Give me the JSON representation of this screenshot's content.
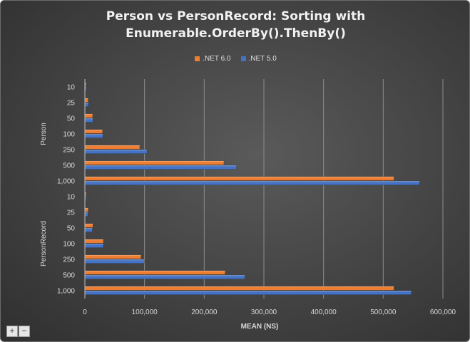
{
  "title_line1": "Person vs PersonRecord: Sorting with",
  "title_line2": "Enumerable.OrderBy().ThenBy()",
  "zoom": {
    "plus": "+",
    "minus": "−"
  },
  "colors": {
    "net6": "#ed7d31",
    "net5": "#4472c4"
  },
  "chart_data": {
    "type": "bar",
    "orientation": "horizontal",
    "title": "Person vs PersonRecord: Sorting with Enumerable.OrderBy().ThenBy()",
    "xlabel": "MEAN (NS)",
    "ylabel": "",
    "xlim": [
      0,
      600000
    ],
    "xticks": [
      "0",
      "100,000",
      "200,000",
      "300,000",
      "400,000",
      "500,000",
      "600,000"
    ],
    "grid": true,
    "legend_position": "top",
    "groups": [
      {
        "name": "Person",
        "categories": [
          "10",
          "25",
          "50",
          "100",
          "250",
          "500",
          "1,000"
        ],
        "series": [
          {
            "name": ".NET 6.0",
            "values": [
              2000,
              5500,
              13000,
              29500,
              92000,
              233000,
              518000
            ]
          },
          {
            "name": ".NET 5.0",
            "values": [
              2500,
              6000,
              13500,
              30000,
              104000,
              254000,
              561000
            ]
          }
        ]
      },
      {
        "name": "PersonRecord",
        "categories": [
          "10",
          "25",
          "50",
          "100",
          "250",
          "500",
          "1,000"
        ],
        "series": [
          {
            "name": ".NET 6.0",
            "values": [
              2000,
              5500,
              13500,
              31000,
              94000,
              235000,
              518000
            ]
          },
          {
            "name": ".NET 5.0",
            "values": [
              2000,
              5000,
              12500,
              31000,
              99500,
              268000,
              547000
            ]
          }
        ]
      }
    ]
  }
}
